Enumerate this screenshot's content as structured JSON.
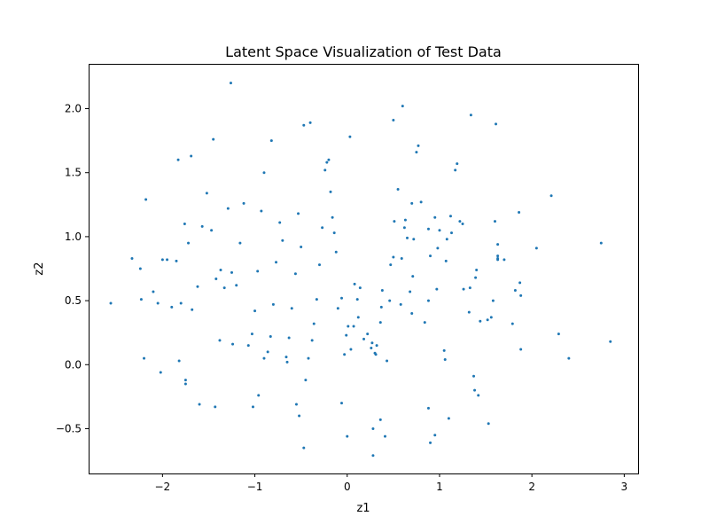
{
  "chart_data": {
    "type": "scatter",
    "title": "Latent Space Visualization of Test Data",
    "xlabel": "z1",
    "ylabel": "z2",
    "xlim": [
      -2.8,
      3.15
    ],
    "ylim": [
      -0.85,
      2.35
    ],
    "xticks": [
      -2,
      -1,
      0,
      1,
      2,
      3
    ],
    "xtick_labels": [
      "−2",
      "−1",
      "0",
      "1",
      "2",
      "3"
    ],
    "yticks": [
      -0.5,
      0.0,
      0.5,
      1.0,
      1.5,
      2.0
    ],
    "ytick_labels": [
      "−0.5",
      "0.0",
      "0.5",
      "1.0",
      "1.5",
      "2.0"
    ],
    "grid": false,
    "legend": "none",
    "marker_color": "#1f77b4",
    "series": [
      {
        "points": [
          [
            -1.26,
            2.2
          ],
          [
            0.6,
            2.02
          ],
          [
            0.5,
            1.91
          ],
          [
            1.34,
            1.95
          ],
          [
            1.61,
            1.88
          ],
          [
            0.03,
            1.78
          ],
          [
            -0.4,
            1.89
          ],
          [
            -0.47,
            1.87
          ],
          [
            -1.45,
            1.76
          ],
          [
            -0.82,
            1.75
          ],
          [
            -1.69,
            1.63
          ],
          [
            -1.83,
            1.6
          ],
          [
            -2.18,
            1.29
          ],
          [
            -2.24,
            0.75
          ],
          [
            -2.33,
            0.83
          ],
          [
            -2.56,
            0.48
          ],
          [
            -2.23,
            0.51
          ],
          [
            -2.2,
            0.05
          ],
          [
            -2.02,
            -0.06
          ],
          [
            -1.82,
            0.03
          ],
          [
            -1.75,
            -0.12
          ],
          [
            -1.75,
            -0.15
          ],
          [
            -1.6,
            -0.31
          ],
          [
            -1.43,
            -0.33
          ],
          [
            -1.38,
            0.19
          ],
          [
            -1.24,
            0.16
          ],
          [
            -1.02,
            -0.33
          ],
          [
            -0.96,
            -0.24
          ],
          [
            -0.9,
            0.05
          ],
          [
            -0.65,
            0.02
          ],
          [
            -0.55,
            -0.31
          ],
          [
            -0.52,
            -0.4
          ],
          [
            -0.47,
            -0.65
          ],
          [
            -0.06,
            -0.3
          ],
          [
            0.0,
            -0.56
          ],
          [
            0.28,
            -0.71
          ],
          [
            0.28,
            -0.5
          ],
          [
            0.36,
            -0.43
          ],
          [
            0.41,
            -0.56
          ],
          [
            0.88,
            -0.34
          ],
          [
            0.9,
            -0.61
          ],
          [
            0.95,
            -0.55
          ],
          [
            1.1,
            -0.42
          ],
          [
            1.53,
            -0.46
          ],
          [
            1.38,
            -0.2
          ],
          [
            1.42,
            -0.24
          ],
          [
            1.37,
            -0.09
          ],
          [
            1.88,
            0.12
          ],
          [
            2.29,
            0.24
          ],
          [
            2.4,
            0.05
          ],
          [
            2.85,
            0.18
          ],
          [
            2.75,
            0.95
          ],
          [
            2.21,
            1.32
          ],
          [
            2.05,
            0.91
          ],
          [
            1.86,
            1.19
          ],
          [
            1.87,
            0.64
          ],
          [
            1.88,
            0.54
          ],
          [
            1.82,
            0.58
          ],
          [
            1.79,
            0.32
          ],
          [
            1.63,
            0.94
          ],
          [
            1.63,
            0.85
          ],
          [
            1.63,
            0.82
          ],
          [
            1.63,
            0.83
          ],
          [
            1.7,
            0.82
          ],
          [
            1.6,
            1.12
          ],
          [
            1.58,
            0.5
          ],
          [
            1.56,
            0.37
          ],
          [
            1.52,
            0.35
          ],
          [
            1.44,
            0.34
          ],
          [
            1.4,
            0.74
          ],
          [
            1.39,
            0.68
          ],
          [
            1.33,
            0.6
          ],
          [
            1.26,
            0.59
          ],
          [
            1.22,
            1.12
          ],
          [
            1.17,
            1.52
          ],
          [
            1.19,
            1.57
          ],
          [
            1.12,
            1.16
          ],
          [
            1.08,
            0.98
          ],
          [
            1.07,
            0.81
          ],
          [
            1.06,
            0.04
          ],
          [
            1.05,
            0.11
          ],
          [
            1.0,
            1.05
          ],
          [
            0.98,
            0.91
          ],
          [
            0.97,
            0.59
          ],
          [
            0.9,
            0.85
          ],
          [
            0.88,
            1.06
          ],
          [
            0.77,
            1.71
          ],
          [
            0.75,
            1.66
          ],
          [
            0.72,
            0.98
          ],
          [
            0.71,
            0.69
          ],
          [
            0.7,
            0.4
          ],
          [
            0.68,
            0.57
          ],
          [
            0.63,
            1.13
          ],
          [
            0.62,
            1.07
          ],
          [
            0.59,
            0.83
          ],
          [
            0.58,
            0.47
          ],
          [
            0.55,
            1.37
          ],
          [
            0.51,
            1.12
          ],
          [
            0.5,
            0.84
          ],
          [
            0.47,
            0.78
          ],
          [
            0.46,
            0.5
          ],
          [
            0.43,
            0.03
          ],
          [
            0.38,
            0.58
          ],
          [
            0.37,
            0.45
          ],
          [
            0.36,
            0.33
          ],
          [
            0.32,
            0.15
          ],
          [
            0.3,
            0.09
          ],
          [
            0.31,
            0.08
          ],
          [
            0.27,
            0.17
          ],
          [
            0.26,
            0.13
          ],
          [
            0.22,
            0.24
          ],
          [
            0.18,
            0.2
          ],
          [
            0.14,
            0.6
          ],
          [
            0.12,
            0.37
          ],
          [
            0.11,
            0.51
          ],
          [
            0.08,
            0.63
          ],
          [
            0.07,
            0.3
          ],
          [
            0.04,
            0.12
          ],
          [
            0.01,
            0.3
          ],
          [
            -0.01,
            0.23
          ],
          [
            -0.03,
            0.08
          ],
          [
            -0.06,
            0.52
          ],
          [
            -0.1,
            0.44
          ],
          [
            -0.12,
            0.88
          ],
          [
            -0.14,
            1.03
          ],
          [
            -0.16,
            1.15
          ],
          [
            -0.18,
            1.35
          ],
          [
            -0.2,
            1.6
          ],
          [
            -0.22,
            1.58
          ],
          [
            -0.24,
            1.52
          ],
          [
            -0.27,
            1.07
          ],
          [
            -0.3,
            0.78
          ],
          [
            -0.33,
            0.51
          ],
          [
            -0.36,
            0.32
          ],
          [
            -0.38,
            0.19
          ],
          [
            -0.42,
            0.05
          ],
          [
            -0.45,
            -0.12
          ],
          [
            -0.5,
            0.92
          ],
          [
            -0.53,
            1.18
          ],
          [
            -0.56,
            0.71
          ],
          [
            -0.6,
            0.44
          ],
          [
            -0.63,
            0.21
          ],
          [
            -0.66,
            0.06
          ],
          [
            -0.7,
            0.97
          ],
          [
            -0.73,
            1.11
          ],
          [
            -0.77,
            0.8
          ],
          [
            -0.8,
            0.47
          ],
          [
            -0.83,
            0.22
          ],
          [
            -0.86,
            0.1
          ],
          [
            -0.9,
            1.5
          ],
          [
            -0.93,
            1.2
          ],
          [
            -0.97,
            0.73
          ],
          [
            -1.0,
            0.42
          ],
          [
            -1.03,
            0.24
          ],
          [
            -1.07,
            0.15
          ],
          [
            -1.12,
            1.26
          ],
          [
            -1.16,
            0.95
          ],
          [
            -1.2,
            0.62
          ],
          [
            -1.25,
            0.72
          ],
          [
            -1.29,
            1.22
          ],
          [
            -1.33,
            0.6
          ],
          [
            -1.37,
            0.74
          ],
          [
            -1.42,
            0.67
          ],
          [
            -1.47,
            1.05
          ],
          [
            -1.52,
            1.34
          ],
          [
            -1.57,
            1.08
          ],
          [
            -1.62,
            0.61
          ],
          [
            -1.68,
            0.43
          ],
          [
            -1.72,
            0.95
          ],
          [
            -1.76,
            1.1
          ],
          [
            -1.8,
            0.48
          ],
          [
            -1.85,
            0.81
          ],
          [
            -1.9,
            0.45
          ],
          [
            -1.95,
            0.82
          ],
          [
            -2.0,
            0.82
          ],
          [
            -2.05,
            0.48
          ],
          [
            -2.1,
            0.57
          ],
          [
            0.88,
            0.5
          ],
          [
            0.84,
            0.33
          ],
          [
            0.8,
            1.27
          ],
          [
            0.7,
            1.26
          ],
          [
            0.65,
            0.99
          ],
          [
            0.95,
            1.15
          ],
          [
            1.13,
            1.03
          ],
          [
            1.25,
            1.1
          ],
          [
            1.32,
            0.41
          ]
        ]
      }
    ]
  }
}
